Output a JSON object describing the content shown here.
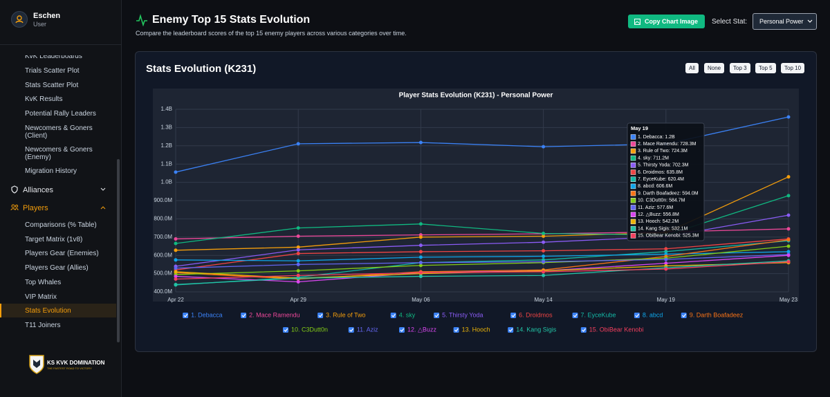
{
  "sidebar": {
    "user": {
      "name": "Eschen",
      "role": "User"
    },
    "tools": [
      "KvK Leaderboards",
      "Trials Scatter Plot",
      "Stats Scatter Plot",
      "KvK Results",
      "Potential Rally Leaders",
      "Newcomers & Goners (Client)",
      "Newcomers & Goners (Enemy)",
      "Migration History"
    ],
    "sections": [
      {
        "label": "Alliances"
      },
      {
        "label": "Players"
      }
    ],
    "player_items": [
      "Comparisons (% Table)",
      "Target Matrix (1v8)",
      "Players Gear (Enemies)",
      "Players Gear (Allies)",
      "Top Whales",
      "VIP Matrix",
      "Stats Evolution",
      "T11 Joiners"
    ],
    "logo": {
      "title": "KS KVK DOMINATION",
      "tagline": "THE FASTEST ROAD TO VICTORY"
    }
  },
  "header": {
    "title": "Enemy Top 15 Stats Evolution",
    "subtitle": "Compare the leaderboard scores of the top 15 enemy players across various categories over time.",
    "copy_button": "Copy Chart Image",
    "select_label": "Select Stat:",
    "select_value": "Personal Power"
  },
  "card": {
    "title": "Stats Evolution (K231)",
    "filters": [
      "All",
      "None",
      "Top 3",
      "Top 5",
      "Top 10"
    ]
  },
  "chart_data": {
    "type": "line",
    "title": "Player Stats Evolution (K231) - Personal Power",
    "categories": [
      "Apr 22",
      "Apr 29",
      "May 06",
      "May 14",
      "May 19",
      "May 23"
    ],
    "ylim": [
      400000000,
      1400000000
    ],
    "yticks": [
      {
        "value": 400000000,
        "label": "400.0M"
      },
      {
        "value": 500000000,
        "label": "500.0M"
      },
      {
        "value": 600000000,
        "label": "600.0M"
      },
      {
        "value": 700000000,
        "label": "700.0M"
      },
      {
        "value": 800000000,
        "label": "800.0M"
      },
      {
        "value": 900000000,
        "label": "900.0M"
      },
      {
        "value": 1000000000,
        "label": "1.0B"
      },
      {
        "value": 1100000000,
        "label": "1.1B"
      },
      {
        "value": 1200000000,
        "label": "1.2B"
      },
      {
        "value": 1300000000,
        "label": "1.3B"
      },
      {
        "value": 1400000000,
        "label": "1.4B"
      }
    ],
    "grid": true,
    "series": [
      {
        "name": "1. Debacca",
        "color": "#3b82f6",
        "values": [
          1056000000,
          1211000000,
          1218000000,
          1195000000,
          1210000000,
          1358000000
        ]
      },
      {
        "name": "2. Mace Ramendu",
        "color": "#ec4899",
        "values": [
          690000000,
          705000000,
          712000000,
          718000000,
          728300000,
          745000000
        ]
      },
      {
        "name": "3. Rule of Two",
        "color": "#f59e0b",
        "values": [
          628000000,
          645000000,
          700000000,
          705000000,
          724300000,
          1030000000
        ]
      },
      {
        "name": "4. sky",
        "color": "#10b981",
        "values": [
          665000000,
          750000000,
          772000000,
          720000000,
          711200000,
          927000000
        ]
      },
      {
        "name": "5. Thirsty Yoda",
        "color": "#8b5cf6",
        "values": [
          540000000,
          630000000,
          655000000,
          672000000,
          702300000,
          820000000
        ]
      },
      {
        "name": "6. Droidmos",
        "color": "#ef4444",
        "values": [
          520000000,
          610000000,
          620000000,
          625000000,
          635800000,
          690000000
        ]
      },
      {
        "name": "7. EyceKube",
        "color": "#14b8a6",
        "values": [
          438000000,
          480000000,
          560000000,
          575000000,
          620400000,
          680000000
        ]
      },
      {
        "name": "8. abcd",
        "color": "#0ea5e9",
        "values": [
          575000000,
          570000000,
          590000000,
          595000000,
          606600000,
          620000000
        ]
      },
      {
        "name": "9. Darth Boafadeez",
        "color": "#f97316",
        "values": [
          505000000,
          470000000,
          510000000,
          520000000,
          594000000,
          685000000
        ]
      },
      {
        "name": "10. C3Dutt0n",
        "color": "#84cc16",
        "values": [
          495000000,
          515000000,
          545000000,
          560000000,
          584700000,
          650000000
        ]
      },
      {
        "name": "11. Aziz",
        "color": "#6366f1",
        "values": [
          530000000,
          550000000,
          560000000,
          565000000,
          577600000,
          605000000
        ]
      },
      {
        "name": "12. △Buzz",
        "color": "#d946ef",
        "values": [
          485000000,
          455000000,
          505000000,
          515000000,
          556800000,
          600000000
        ]
      },
      {
        "name": "13. Hooch",
        "color": "#eab308",
        "values": [
          510000000,
          475000000,
          500000000,
          515000000,
          542200000,
          560000000
        ]
      },
      {
        "name": "14. Kang Sigis",
        "color": "#22c3a6",
        "values": [
          440000000,
          475000000,
          485000000,
          490000000,
          532100000,
          570000000
        ]
      },
      {
        "name": "15. ObiBear Kenobi",
        "color": "#f43f5e",
        "values": [
          470000000,
          490000000,
          505000000,
          510000000,
          525300000,
          565000000
        ]
      }
    ],
    "tooltip": {
      "title": "May 19",
      "items": [
        "1. Debacca: 1.2B",
        "2. Mace Ramendu: 728.3M",
        "3. Rule of Two: 724.3M",
        "4. sky: 711.2M",
        "5. Thirsty Yoda: 702.3M",
        "6. Droidmos: 635.8M",
        "7. EyceKube: 620.4M",
        "8. abcd: 606.6M",
        "9. Darth Boafadeez: 594.0M",
        "10. C3Dutt0n: 584.7M",
        "11. Aziz: 577.6M",
        "12. △Buzz: 556.8M",
        "13. Hooch: 542.2M",
        "14. Kang Sigis: 532.1M",
        "15. ObiBear Kenobi: 525.3M"
      ]
    }
  }
}
